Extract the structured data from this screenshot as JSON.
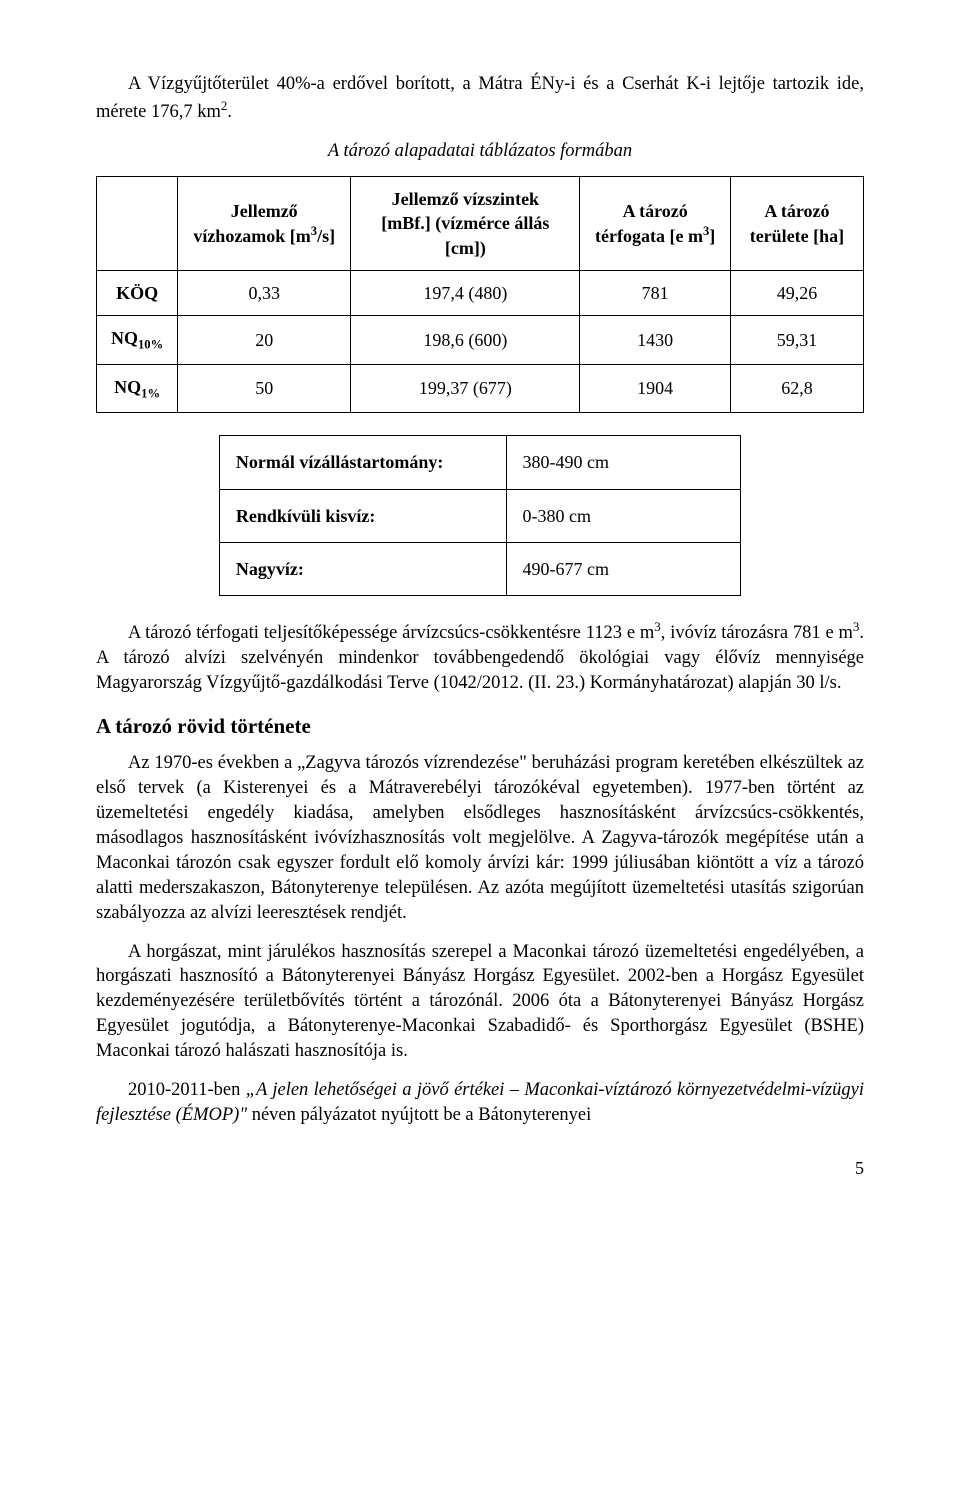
{
  "para1_a": "A Vízgyűjtőterület 40%-a erdővel borított, a Mátra ÉNy-i és a Cserhát K-i lejtője tartozik ide, mérete 176,7 km",
  "para1_b": ".",
  "table1_caption": "A tározó alapadatai táblázatos formában",
  "table1": {
    "h_empty": "",
    "h_col1_a": "Jellemző vízhozamok [m",
    "h_col1_b": "/s]",
    "h_col2": "Jellemző vízszintek [mBf.] (vízmérce állás [cm])",
    "h_col3_a": "A tározó térfogata [e m",
    "h_col3_b": "]",
    "h_col4": "A tározó területe [ha]",
    "rows": [
      {
        "h": "KÖQ",
        "c1": "0,33",
        "c2": "197,4 (480)",
        "c3": "781",
        "c4": "49,26"
      },
      {
        "h_a": "NQ",
        "h_sub": "10%",
        "c1": "20",
        "c2": "198,6 (600)",
        "c3": "1430",
        "c4": "59,31"
      },
      {
        "h_a": "NQ",
        "h_sub": "1%",
        "c1": "50",
        "c2": "199,37 (677)",
        "c3": "1904",
        "c4": "62,8"
      }
    ]
  },
  "table2": [
    {
      "label": "Normál vízállástartomány:",
      "value": "380-490 cm"
    },
    {
      "label": "Rendkívüli kisvíz:",
      "value": "0-380 cm"
    },
    {
      "label": "Nagyvíz:",
      "value": "490-677 cm"
    }
  ],
  "para2_a": "A tározó térfogati teljesítőképessége árvízcsúcs-csökkentésre 1123 e m",
  "para2_b": ", ivóvíz tározásra 781 e m",
  "para2_c": ". A tározó alvízi szelvényén mindenkor továbbengedendő ökológiai vagy élővíz mennyisége Magyarország Vízgyűjtő-gazdálkodási Terve (1042/2012. (II. 23.) Kormányhatározat) alapján 30 l/s.",
  "h2": "A tározó rövid története",
  "para3": "Az 1970-es években a „Zagyva tározós vízrendezése\" beruházási program keretében elkészültek az első tervek (a Kisterenyei és a Mátraverebélyi tározókéval egyetemben). 1977-ben történt az üzemeltetési engedély kiadása, amelyben elsődleges hasznosításként árvízcsúcs-csökkentés, másodlagos hasznosításként ivóvízhasznosítás volt megjelölve. A Zagyva-tározók megépítése után a Maconkai tározón csak egyszer fordult elő komoly árvízi kár: 1999 júliusában kiöntött a víz a tározó alatti mederszakaszon, Bátonyterenye településen. Az azóta megújított üzemeltetési utasítás szigorúan szabályozza az alvízi leeresztések rendjét.",
  "para4": "A horgászat, mint járulékos hasznosítás szerepel a Maconkai tározó üzemeltetési engedélyében, a horgászati hasznosító a Bátonyterenyei Bányász Horgász Egyesület. 2002-ben a Horgász Egyesület kezdeményezésére területbővítés történt a tározónál. 2006 óta a Bátonyterenyei Bányász Horgász Egyesület jogutódja, a Bátonyterenye-Maconkai Szabadidő- és Sporthorgász Egyesület (BSHE) Maconkai tározó halászati hasznosítója is.",
  "para5_a": "2010-2011-ben ",
  "para5_i": "„A jelen lehetőségei a jövő értékei – Maconkai-víztározó környezetvédelmi-vízügyi fejlesztése (ÉMOP)\"",
  "para5_b": " néven pályázatot nyújtott be a Bátonyterenyei",
  "pagenum": "5",
  "sup3": "3",
  "sup2": "2"
}
